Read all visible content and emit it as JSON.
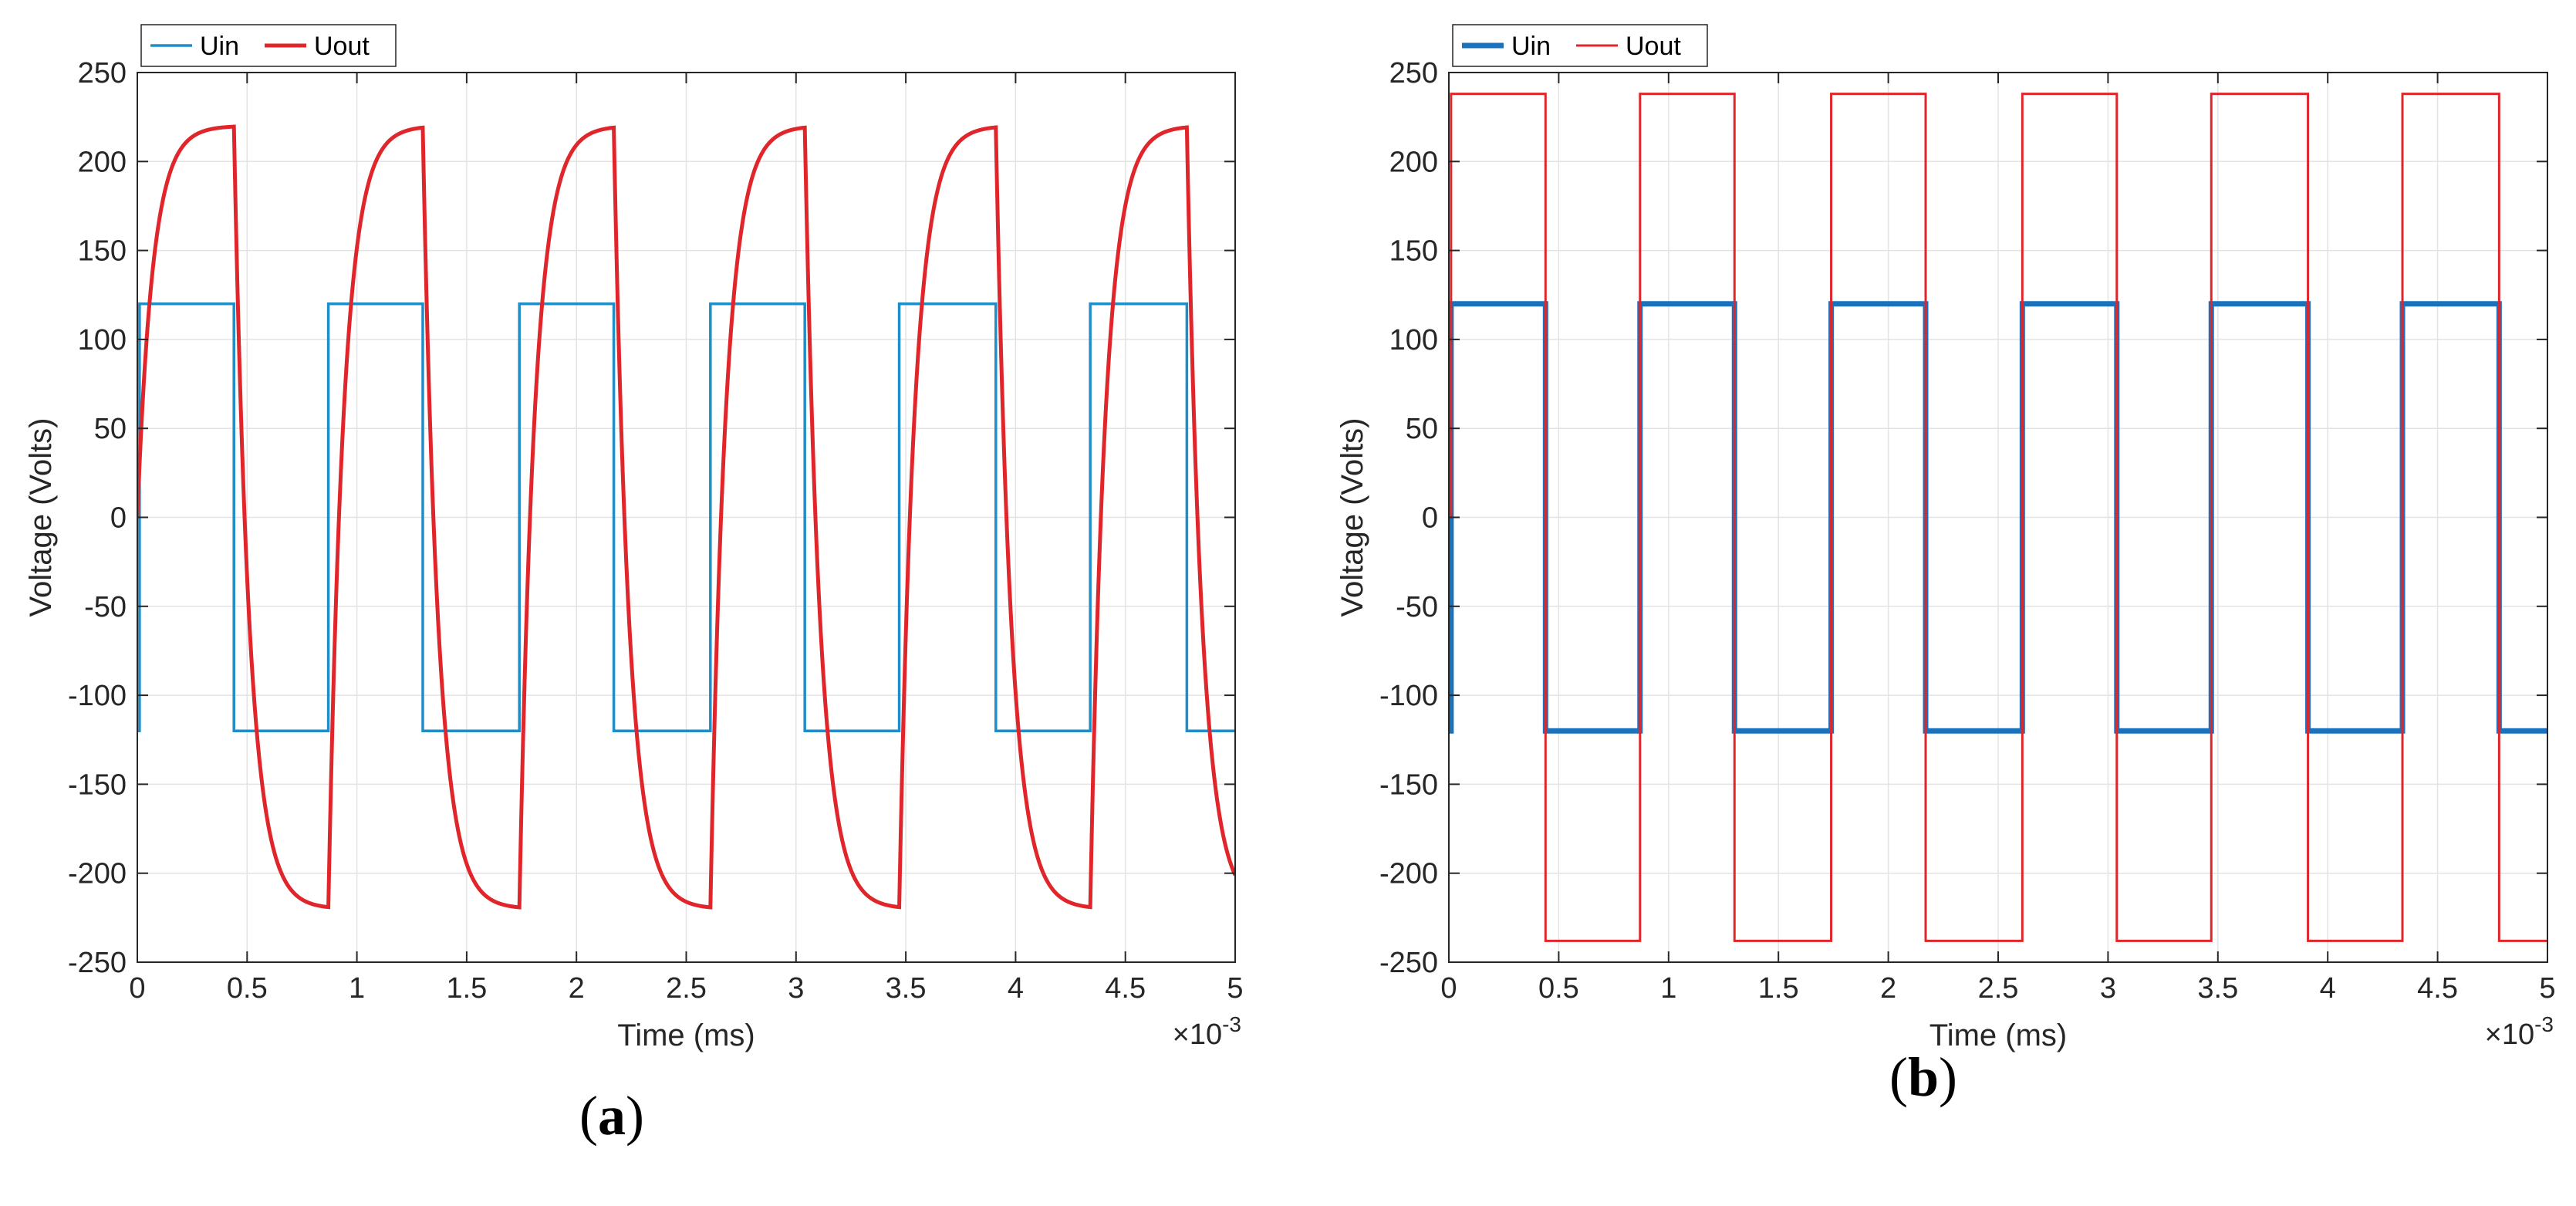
{
  "chart_data": [
    {
      "type": "line",
      "panel_label": "a",
      "legend_location": "top-left",
      "xlabel": "Time (ms)",
      "ylabel": "Voltage (Volts)",
      "x_exponent_label": "×10",
      "x_exponent_power": "-3",
      "xlim": [
        0,
        0.005
      ],
      "ylim": [
        -250,
        250
      ],
      "x_ticks": [
        0,
        0.0005,
        0.001,
        0.0015,
        0.002,
        0.0025,
        0.003,
        0.0035,
        0.004,
        0.0045,
        0.005
      ],
      "x_tick_labels": [
        "0",
        "0.5",
        "1",
        "1.5",
        "2",
        "2.5",
        "3",
        "3.5",
        "4",
        "4.5",
        "5"
      ],
      "y_ticks": [
        250,
        200,
        150,
        100,
        50,
        0,
        -50,
        -100,
        -150,
        -200,
        -250
      ],
      "y_tick_labels": [
        "250",
        "200",
        "150",
        "100",
        "50",
        "0",
        "-50",
        "-100",
        "-150",
        "-200",
        "-250"
      ],
      "grid": true,
      "series": [
        {
          "name": "Uin",
          "color": "#1f8dc8",
          "line_width": 3.5,
          "shape": "square",
          "amplitude": 120,
          "initial_value": -120,
          "switch_times": [
            1e-05,
            0.00044,
            0.00087,
            0.0013,
            0.00174,
            0.00217,
            0.00261,
            0.00304,
            0.00347,
            0.00391,
            0.00434,
            0.00478
          ]
        },
        {
          "name": "Uout",
          "color": "#e0262a",
          "line_width": 5,
          "shape": "exponential",
          "amplitude": 220,
          "initial_value": 0,
          "time_constant": 7e-05,
          "switch_times": [
            1e-05,
            0.00044,
            0.00087,
            0.0013,
            0.00174,
            0.00217,
            0.00261,
            0.00304,
            0.00347,
            0.00391,
            0.00434,
            0.00478
          ]
        }
      ]
    },
    {
      "type": "line",
      "panel_label": "b",
      "legend_location": "top-left",
      "xlabel": "Time (ms)",
      "ylabel": "Voltage (Volts)",
      "x_exponent_label": "×10",
      "x_exponent_power": "-3",
      "xlim": [
        0,
        0.005
      ],
      "ylim": [
        -250,
        250
      ],
      "x_ticks": [
        0,
        0.0005,
        0.001,
        0.0015,
        0.002,
        0.0025,
        0.003,
        0.0035,
        0.004,
        0.0045,
        0.005
      ],
      "x_tick_labels": [
        "0",
        "0.5",
        "1",
        "1.5",
        "2",
        "2.5",
        "3",
        "3.5",
        "4",
        "4.5",
        "5"
      ],
      "y_ticks": [
        250,
        200,
        150,
        100,
        50,
        0,
        -50,
        -100,
        -150,
        -200,
        -250
      ],
      "y_tick_labels": [
        "250",
        "200",
        "150",
        "100",
        "50",
        "0",
        "-50",
        "-100",
        "-150",
        "-200",
        "-250"
      ],
      "grid": true,
      "series": [
        {
          "name": "Uin",
          "color": "#1a72bd",
          "line_width": 7,
          "shape": "square",
          "amplitude": 120,
          "initial_value": -120,
          "switch_times": [
            1e-05,
            0.00044,
            0.00087,
            0.0013,
            0.00174,
            0.00217,
            0.00261,
            0.00304,
            0.00347,
            0.00391,
            0.00434,
            0.00478
          ]
        },
        {
          "name": "Uout",
          "color": "#e0262a",
          "line_width": 3,
          "shape": "square",
          "amplitude": 238,
          "initial_value": 0,
          "switch_times": [
            1e-05,
            0.00044,
            0.00087,
            0.0013,
            0.00174,
            0.00217,
            0.00261,
            0.00304,
            0.00347,
            0.00391,
            0.00434,
            0.00478
          ]
        }
      ]
    }
  ]
}
